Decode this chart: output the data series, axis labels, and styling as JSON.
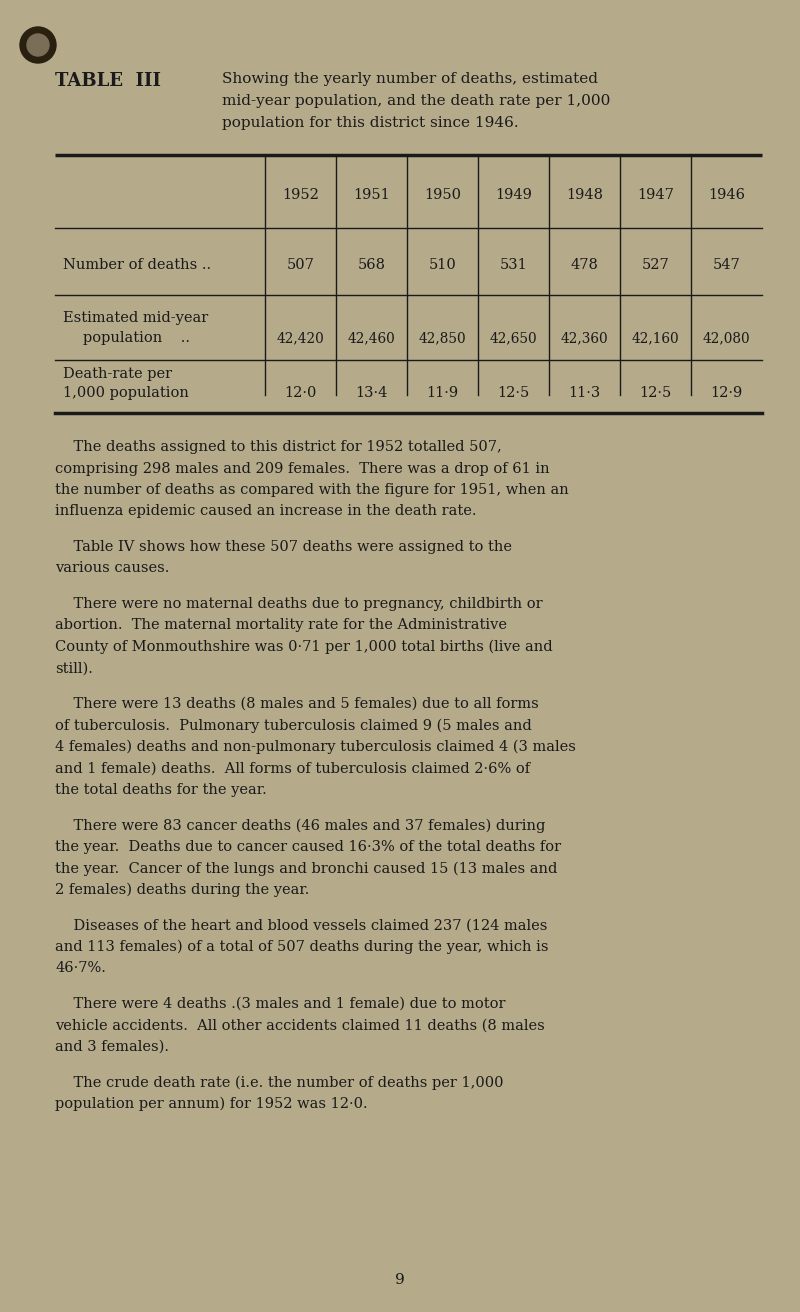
{
  "bg_color": "#b5aa8a",
  "text_color": "#1a1a1a",
  "table_years": [
    "1952",
    "1951",
    "1950",
    "1949",
    "1948",
    "1947",
    "1946"
  ],
  "row1_label": "Number of deaths ..",
  "row1_values": [
    "507",
    "568",
    "510",
    "531",
    "478",
    "527",
    "547"
  ],
  "row2_label1": "Estimated mid-year",
  "row2_label2": "population    ..",
  "row2_values": [
    "42,420",
    "42,460",
    "42,850",
    "42,650",
    "42,360",
    "42,160",
    "42,080"
  ],
  "row3_label1": "Death-rate per",
  "row3_label2": "1,000 population",
  "row3_values": [
    "12·0",
    "13·4",
    "11·9",
    "12·5",
    "11·3",
    "12·5",
    "12·9"
  ],
  "para1_lines": [
    "    The deaths assigned to this district for 1952 totalled 507,",
    "comprising 298 males and 209 females.  There was a drop of 61 in",
    "the number of deaths as compared with the figure for 1951, when an",
    "influenza epidemic caused an increase in the death rate."
  ],
  "para2_lines": [
    "    Table IV shows how these 507 deaths were assigned to the",
    "various causes."
  ],
  "para3_lines": [
    "    There were no maternal deaths due to pregnancy, childbirth or",
    "abortion.  The maternal mortality rate for the Administrative",
    "County of Monmouthshire was 0·71 per 1,000 total births (live and",
    "still)."
  ],
  "para4_lines": [
    "    There were 13 deaths (8 males and 5 females) due to all forms",
    "of tuberculosis.  Pulmonary tuberculosis claimed 9 (5 males and",
    "4 females) deaths and non-pulmonary tuberculosis claimed 4 (3 males",
    "and 1 female) deaths.  All forms of tuberculosis claimed 2·6% of",
    "the total deaths for the year."
  ],
  "para5_lines": [
    "    There were 83 cancer deaths (46 males and 37 females) during",
    "the year.  Deaths due to cancer caused 16·3% of the total deaths for",
    "the year.  Cancer of the lungs and bronchi caused 15 (13 males and",
    "2 females) deaths during the year."
  ],
  "para6_lines": [
    "    Diseases of the heart and blood vessels claimed 237 (124 males",
    "and 113 females) of a total of 507 deaths during the year, which is",
    "46·7%."
  ],
  "para7_lines": [
    "    There were 4 deaths .(3 males and 1 female) due to motor",
    "vehicle accidents.  All other accidents claimed 11 deaths (8 males",
    "and 3 females)."
  ],
  "para8_lines": [
    "    The crude death rate (i.e. the number of deaths per 1,000",
    "population per annum) for 1952 was 12·0."
  ],
  "page_number": "9"
}
